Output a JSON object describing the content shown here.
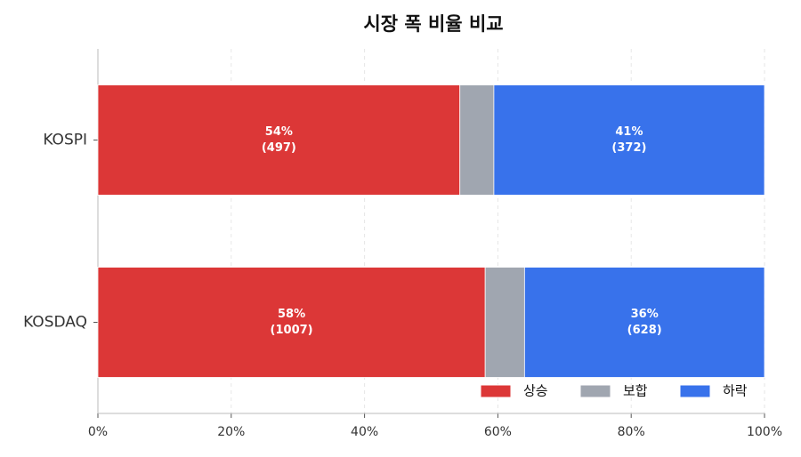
{
  "chart_data": {
    "type": "stacked_barh",
    "title": "시장 폭 비율 비교",
    "categories": [
      "KOSPI",
      "KOSDAQ"
    ],
    "series": [
      {
        "name": "상승",
        "color": "#dc3737",
        "values": [
          54.3,
          58.1
        ],
        "value_labels": [
          [
            "54%",
            "(497)"
          ],
          [
            "58%",
            "(1007)"
          ]
        ]
      },
      {
        "name": "보합",
        "color": "#a0a6b0",
        "values": [
          5.1,
          5.9
        ]
      },
      {
        "name": "하락",
        "color": "#3872eb",
        "values": [
          40.6,
          36.0
        ],
        "value_labels": [
          [
            "41%",
            "(372)"
          ],
          [
            "36%",
            "(628)"
          ]
        ]
      }
    ],
    "xlim": [
      0,
      100
    ],
    "xticks": [
      {
        "value": 0,
        "label": "0%"
      },
      {
        "value": 20,
        "label": "20%"
      },
      {
        "value": 40,
        "label": "40%"
      },
      {
        "value": 60,
        "label": "60%"
      },
      {
        "value": 80,
        "label": "80%"
      },
      {
        "value": 100,
        "label": "100%"
      }
    ],
    "grid": true,
    "legend": "lower right"
  }
}
